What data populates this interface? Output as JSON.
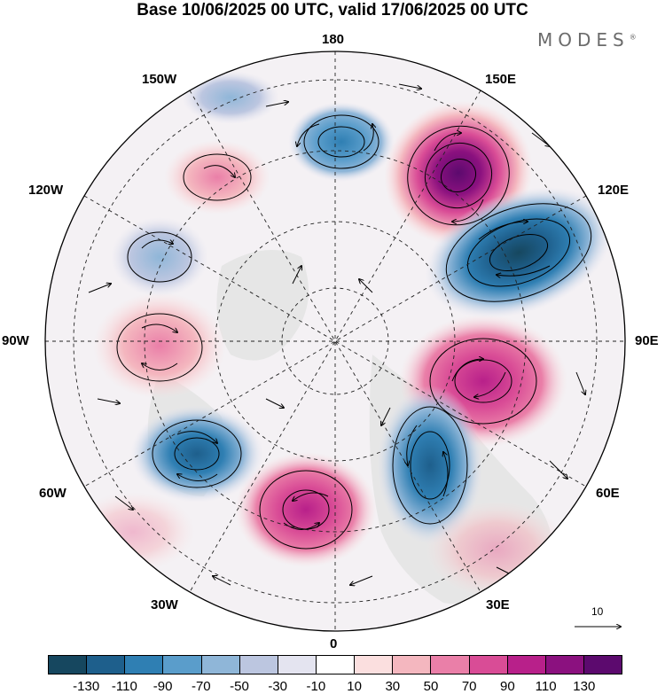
{
  "header": {
    "title": "Base 10/06/2025 00 UTC, valid 17/06/2025 00 UTC",
    "brand": "MODES",
    "brand_mark": "®"
  },
  "map": {
    "projection": "north-polar-stereographic",
    "longitude_labels": {
      "top": "180",
      "bottom": "0",
      "left": "90W",
      "right": "90E",
      "upper_left": "150W",
      "upper_right": "150E",
      "mid_left_upper": "120W",
      "mid_right_upper": "120E",
      "mid_left_lower": "60W",
      "mid_right_lower": "60E",
      "lower_left": "30W",
      "lower_right": "30E"
    },
    "grid": "dashed",
    "vector_reference": "10",
    "anomaly_centers": [
      {
        "sign": "negative",
        "description": "top center",
        "strength": -70
      },
      {
        "sign": "positive",
        "description": "upper right",
        "strength": 130
      },
      {
        "sign": "negative",
        "description": "right",
        "strength": -130
      },
      {
        "sign": "positive",
        "description": "right lower",
        "strength": 110
      },
      {
        "sign": "negative",
        "description": "lower right",
        "strength": -90
      },
      {
        "sign": "positive",
        "description": "bottom",
        "strength": 90
      },
      {
        "sign": "negative",
        "description": "lower left",
        "strength": -90
      },
      {
        "sign": "positive",
        "description": "left",
        "strength": 70
      },
      {
        "sign": "negative",
        "description": "upper left",
        "strength": -50
      },
      {
        "sign": "positive",
        "description": "top left",
        "strength": 50
      }
    ]
  },
  "colorbar": {
    "colors": [
      "#16475f",
      "#1e5f8c",
      "#2f7fb3",
      "#5a9dcb",
      "#8fb6d8",
      "#bcc6e0",
      "#e4e4f0",
      "#ffffff",
      "#fbdfdf",
      "#f4b7bf",
      "#ea7fa8",
      "#d94c96",
      "#b8208a",
      "#8b117f",
      "#5c0a6e"
    ],
    "tick_labels": [
      "-130",
      "-110",
      "-90",
      "-70",
      "-50",
      "-30",
      "-10",
      "10",
      "30",
      "50",
      "70",
      "90",
      "110",
      "130"
    ]
  }
}
